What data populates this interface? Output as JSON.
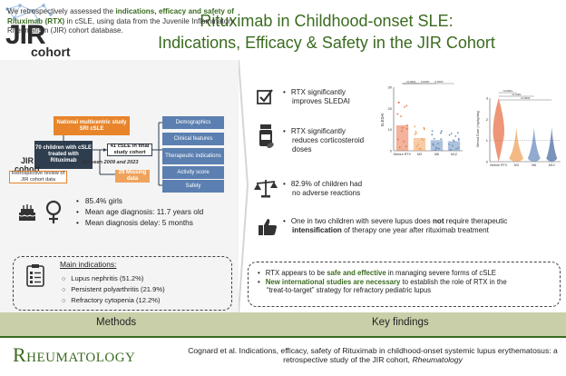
{
  "header": {
    "logo_jir": "JIR",
    "logo_cohort": "cohort",
    "title_line1": "Rituximab in Childhood-onset SLE:",
    "title_line2": "Indications, Efficacy & Safety in the JIR Cohort"
  },
  "methods": {
    "intro_part1": "We retrospectively assessed the ",
    "intro_bold": "indications, efficacy and safety of Rituximab (RTX)",
    "intro_part2": " in cSLE, using data from the Juvenile Inflammatory Rheumatism (JIR) cohort database.",
    "flow": {
      "national": "National multicentric study SRI cSLE",
      "children": "70 children with cSLE treated with Rituximab",
      "cohort_label": "JIR cohort",
      "final": "41 cSLE in final study cohort",
      "between": "Between 2009 and 2023",
      "missing": "29 Missing data",
      "retrospective": "Retrospective review of JIR cohort data"
    },
    "side_items": [
      "Demographics",
      "Clinical features",
      "Therapeutic indications",
      "Activity score",
      "Safety"
    ],
    "stats": [
      "85.4% girls",
      "Mean age diagnosis: 11.7 years old",
      "Mean diagnosis delay: 5 months"
    ],
    "main_indications_title": "Main indications:",
    "indications": [
      "Lupus nephritis (51.2%)",
      "Persistent polyarthritis (21.9%)",
      "Refractory cytopenia (12.2%)"
    ]
  },
  "findings": {
    "f1_line1": "RTX significantly",
    "f1_line2": "improves SLEDAI",
    "f2_line1": "RTX significantly",
    "f2_line2": "reduces corticosteroid",
    "f2_line3": "doses",
    "f3_line1": "82.9% of children had",
    "f3_line2": "no adverse reactions",
    "f4_part1": "One in two children with severe lupus does ",
    "f4_bold": "not",
    "f4_part2": " require therapeutic",
    "f4_line2_bold": "intensification",
    "f4_line2": " of therapy one year after rituximab treatment"
  },
  "bottom": {
    "b1_part1": "RTX appears to be ",
    "b1_bold": "safe and effective",
    "b1_part2": " in managing severe forms of cSLE",
    "b2_bold": "New international studies are necessary",
    "b2_part2": " to establish the role of RTX in the",
    "b2_line2": "“treat-to-target” strategy for refractory pediatric lupus"
  },
  "chart_data": [
    {
      "type": "bar",
      "ylabel": "SLEDAI",
      "categories": [
        "Before RTX",
        "M3",
        "M6",
        "M12"
      ],
      "values": [
        12,
        6,
        5,
        4.5
      ],
      "ylim": [
        0,
        30
      ],
      "yticks": [
        "0",
        "10",
        "20",
        "30"
      ],
      "pvalues": [
        "<0.0001",
        "0.0002",
        "0.0004"
      ]
    },
    {
      "type": "violin",
      "ylabel": "Steroid Dose (mg/kg/day)",
      "categories": [
        "Before RTX",
        "M3",
        "M6",
        "M12"
      ],
      "ylim": [
        0,
        3
      ],
      "yticks": [
        "0",
        "1",
        "2",
        "3"
      ],
      "pvalues": [
        "<0.0001",
        "<0.0001",
        "<0.0001"
      ]
    }
  ],
  "sections": {
    "methods_label": "Methods",
    "findings_label": "Key findings"
  },
  "footer": {
    "journal": "Rheumatology",
    "citation_main": "Cognard et al. Indications, efficacy, safety of Rituximab in childhood-onset systemic lupus erythematosus: a retrospective study of the JIR cohort, ",
    "citation_journal": "Rheumatology"
  },
  "colors": {
    "accent": "#3a6b1f",
    "orange": "#e8852b",
    "navy": "#2e3e4f",
    "blue": "#5b7fb0",
    "labels_bg": "#c9cfa8"
  }
}
